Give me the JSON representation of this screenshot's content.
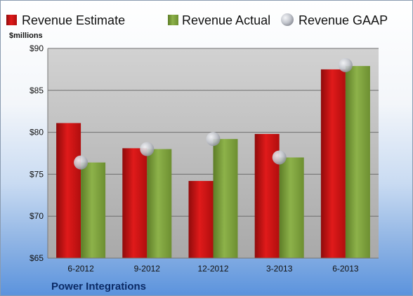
{
  "chart_data": {
    "type": "bar",
    "ylabel": "$millions",
    "company": "Power Integrations",
    "categories": [
      "6-2012",
      "9-2012",
      "12-2012",
      "3-2013",
      "6-2013"
    ],
    "ylim": [
      65,
      90
    ],
    "yticks": [
      65,
      70,
      75,
      80,
      85,
      90
    ],
    "ytick_labels": [
      "$65",
      "$70",
      "$75",
      "$80",
      "$85",
      "$90"
    ],
    "grid": true,
    "legend_position": "top",
    "series": [
      {
        "name": "Revenue Estimate",
        "kind": "bar",
        "color": "#cc1111",
        "values": [
          81.1,
          78.1,
          74.2,
          79.8,
          87.5
        ]
      },
      {
        "name": "Revenue Actual",
        "kind": "bar",
        "color": "#7fa23f",
        "values": [
          76.4,
          78.0,
          79.2,
          77.0,
          87.9
        ]
      },
      {
        "name": "Revenue GAAP",
        "kind": "marker",
        "color": "#b9bcc4",
        "values": [
          76.4,
          78.0,
          79.2,
          77.0,
          88.0
        ]
      }
    ]
  }
}
